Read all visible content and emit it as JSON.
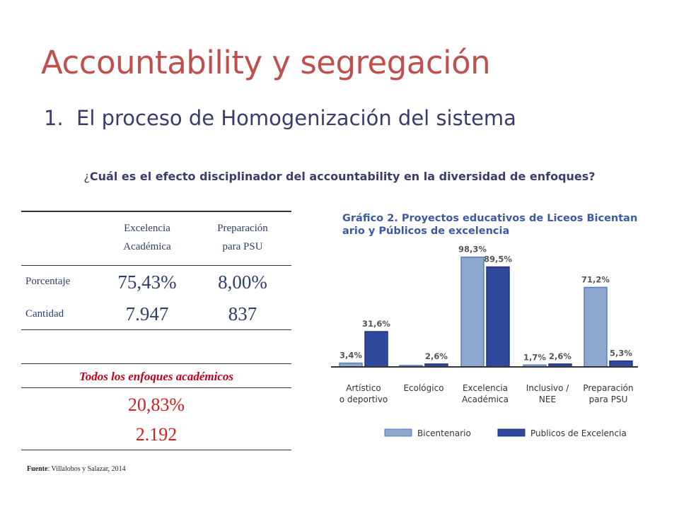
{
  "slide": {
    "title": "Accountability y segregación",
    "subtitle_number": "1.",
    "subtitle_text": "El proceso de Homogenización del sistema",
    "question_mark": "¿",
    "question_text": "Cuál es el efecto disciplinador del accountability en la diversidad de enfoques?"
  },
  "table": {
    "col1_line1": "Excelencia",
    "col1_line2": "Académica",
    "col2_line1": "Preparación",
    "col2_line2": "para PSU",
    "rows": [
      {
        "label": "Porcentaje",
        "v1": "75,43%",
        "v2": "8,00%"
      },
      {
        "label": "Cantidad",
        "v1": "7.947",
        "v2": "837"
      }
    ],
    "total_header": "Todos los enfoques académicos",
    "total_percent": "20,83%",
    "total_count": "2.192"
  },
  "source": {
    "label": "Fuente",
    "text": ": Villalobos y Salazar, 2014"
  },
  "chart_data": {
    "type": "bar",
    "title_line1": "Gráfico 2. Proyectos educativos  de Liceos Bicentan-",
    "title_line2": "ario y Públicos de excelencia",
    "categories": [
      [
        "Artístico",
        "o deportivo"
      ],
      [
        "Ecológico"
      ],
      [
        "Excelencia",
        "Académica"
      ],
      [
        "Inclusivo /",
        "NEE"
      ],
      [
        "Preparación",
        "para PSU"
      ]
    ],
    "series": [
      {
        "name": "Bicentenario",
        "values": [
          3.4,
          0,
          98.3,
          1.7,
          71.2
        ],
        "labels": [
          "3,4%",
          "",
          "98,3%",
          "1,7%",
          "71,2%"
        ],
        "color": "#8da7cf"
      },
      {
        "name": "Publicos de Excelencia",
        "values": [
          31.6,
          2.6,
          89.5,
          2.6,
          5.3
        ],
        "labels": [
          "31,6%",
          "2,6%",
          "89,5%",
          "2,6%",
          "5,3%"
        ],
        "color": "#2f4a9c"
      }
    ],
    "ylim": [
      0,
      100
    ],
    "legend": "bottom"
  }
}
